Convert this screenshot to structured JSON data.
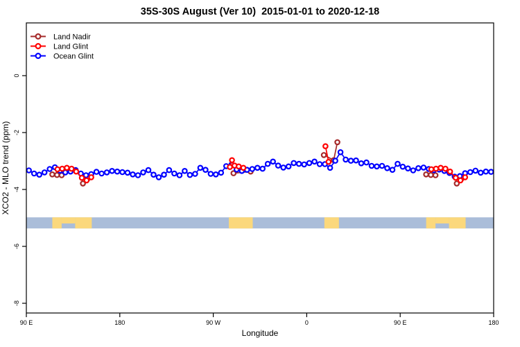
{
  "title": "35S-30S August (Ver 10)  2015-01-01 to 2020-12-18",
  "chart_data": {
    "type": "line",
    "title": "35S-30S August (Ver 10)  2015-01-01 to 2020-12-18",
    "xlabel": "Longitude",
    "ylabel": "XCO2 - MLO trend (ppm)",
    "x_range": [
      0,
      450
    ],
    "x_axis_note": "longitude axis starts at 90E and wraps eastward 450 degrees",
    "x_ticks": [
      {
        "pos": 0,
        "label": "90 E"
      },
      {
        "pos": 90,
        "label": "180"
      },
      {
        "pos": 180,
        "label": "90 W"
      },
      {
        "pos": 270,
        "label": "0"
      },
      {
        "pos": 360,
        "label": "90 E"
      },
      {
        "pos": 450,
        "label": "180"
      }
    ],
    "y_ticks": [
      {
        "pos": 0,
        "label": "0"
      },
      {
        "pos": -2,
        "label": "-2"
      },
      {
        "pos": -4,
        "label": "-4"
      },
      {
        "pos": -6,
        "label": "-6"
      },
      {
        "pos": -8,
        "label": "-8"
      }
    ],
    "ylim": [
      -8.3,
      1.85
    ],
    "grid": false,
    "legend_position": "top-left",
    "legend": [
      {
        "label": "Land Nadir",
        "color": "#A52A2A"
      },
      {
        "label": "Land Glint",
        "color": "#FF0000"
      },
      {
        "label": "Ocean Glint",
        "color": "#0000FF"
      }
    ],
    "series": [
      {
        "name": "Land Nadir",
        "color": "#A52A2A",
        "clusters": [
          [
            [
              25,
              -3.47
            ],
            [
              29.5,
              -3.49
            ],
            [
              34,
              -3.5
            ]
          ],
          [
            [
              54.5,
              -3.79
            ],
            [
              59,
              -3.62
            ]
          ],
          [
            [
              199.5,
              -3.43
            ],
            [
              216,
              -3.37
            ]
          ],
          [
            [
              286.5,
              -2.79
            ],
            [
              296,
              -2.97
            ],
            [
              299.5,
              -2.34
            ]
          ],
          [
            [
              385,
              -3.47
            ],
            [
              389.5,
              -3.49
            ],
            [
              394,
              -3.5
            ]
          ],
          [
            [
              414.5,
              -3.79
            ],
            [
              419,
              -3.62
            ]
          ]
        ]
      },
      {
        "name": "Ocean Glint",
        "color": "#0000FF",
        "t_start": 2.5,
        "t_step": 5,
        "values": [
          -3.33,
          -3.44,
          -3.48,
          -3.4,
          -3.28,
          -3.22,
          -3.34,
          -3.4,
          -3.37,
          -3.32,
          -3.44,
          -3.5,
          -3.46,
          -3.38,
          -3.44,
          -3.4,
          -3.35,
          -3.37,
          -3.39,
          -3.41,
          -3.47,
          -3.5,
          -3.4,
          -3.32,
          -3.48,
          -3.57,
          -3.48,
          -3.32,
          -3.44,
          -3.5,
          -3.35,
          -3.49,
          -3.45,
          -3.24,
          -3.31,
          -3.45,
          -3.47,
          -3.41,
          -3.18,
          -3.13,
          -3.3,
          -3.35,
          -3.31,
          -3.28,
          -3.24,
          -3.27,
          -3.1,
          -3.02,
          -3.16,
          -3.23,
          -3.19,
          -3.07,
          -3.1,
          -3.12,
          -3.07,
          -3.02,
          -3.11,
          -3.11,
          -3.24,
          -2.99,
          -2.69,
          -2.95,
          -2.99,
          -2.98,
          -3.08,
          -3.05,
          -3.17,
          -3.19,
          -3.17,
          -3.25,
          -3.31,
          -3.1,
          -3.2,
          -3.26,
          -3.33,
          -3.25,
          -3.23,
          -3.28,
          -3.32,
          -3.3,
          -3.35,
          -3.42,
          -3.55,
          -3.53,
          -3.43,
          -3.39,
          -3.34,
          -3.41,
          -3.37,
          -3.38
        ]
      },
      {
        "name": "Land Glint",
        "color": "#FF0000",
        "clusters": [
          [
            [
              30,
              -3.29
            ],
            [
              34.5,
              -3.27
            ],
            [
              39,
              -3.24
            ],
            [
              43.5,
              -3.27
            ],
            [
              48,
              -3.37
            ],
            [
              53.5,
              -3.59
            ],
            [
              58,
              -3.68
            ],
            [
              62.5,
              -3.57
            ]
          ],
          [
            [
              196,
              -3.21
            ],
            [
              198,
              -2.97
            ],
            [
              200.5,
              -3.16
            ],
            [
              204.5,
              -3.19
            ],
            [
              209,
              -3.24
            ]
          ],
          [
            [
              288,
              -2.48
            ],
            [
              291,
              -3.03
            ]
          ],
          [
            [
              390,
              -3.29
            ],
            [
              394.5,
              -3.27
            ],
            [
              399,
              -3.24
            ],
            [
              403.5,
              -3.27
            ],
            [
              408,
              -3.37
            ],
            [
              413.5,
              -3.59
            ],
            [
              418,
              -3.68
            ],
            [
              422.5,
              -3.57
            ]
          ]
        ]
      }
    ],
    "map_band": {
      "description": "land/ocean strip for 35S-30S latitude band",
      "ocean_color": "#AABDD9",
      "land_color": "#FBD87C",
      "y_range": [
        -4.98,
        -5.37
      ],
      "land_patches": [
        {
          "t0": 25,
          "t1": 34,
          "frac": 1.0
        },
        {
          "t0": 34,
          "t1": 47,
          "frac": 0.55
        },
        {
          "t0": 47,
          "t1": 63,
          "frac": 1.0
        },
        {
          "t0": 195,
          "t1": 218,
          "frac": 1.0
        },
        {
          "t0": 287,
          "t1": 301,
          "frac": 1.0
        },
        {
          "t0": 385,
          "t1": 394,
          "frac": 1.0
        },
        {
          "t0": 394,
          "t1": 407,
          "frac": 0.55
        },
        {
          "t0": 407,
          "t1": 423,
          "frac": 1.0
        }
      ]
    },
    "marker": {
      "shape": "open-circle",
      "radius": 3.2,
      "stroke_width": 2.2,
      "fill": "#ffffff"
    }
  }
}
